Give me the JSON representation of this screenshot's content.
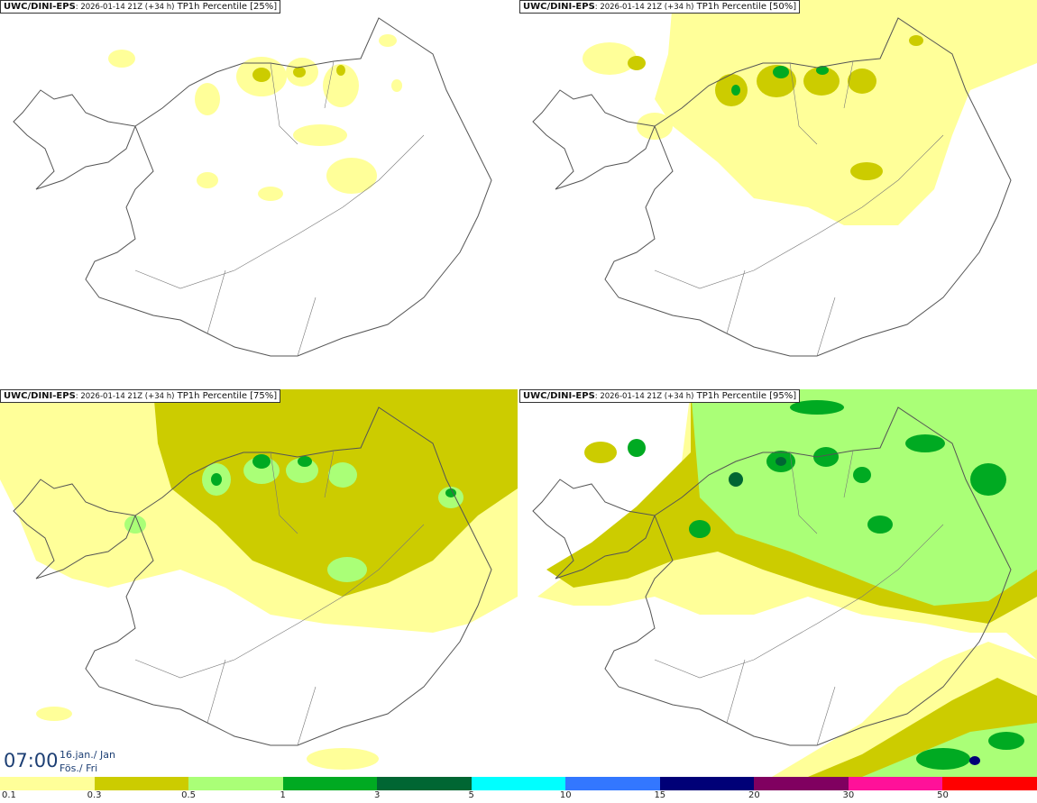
{
  "panels": [
    {
      "source": "UWC/DINI-EPS",
      "run": ": 2026-01-14 21Z (+34 h)",
      "field": "TP1h Percentile [25%]"
    },
    {
      "source": "UWC/DINI-EPS",
      "run": ": 2026-01-14 21Z (+34 h)",
      "field": "TP1h Percentile [50%]"
    },
    {
      "source": "UWC/DINI-EPS",
      "run": ": 2026-01-14 21Z (+34 h)",
      "field": "TP1h Percentile [75%]"
    },
    {
      "source": "UWC/DINI-EPS",
      "run": ": 2026-01-14 21Z (+34 h)",
      "field": "TP1h Percentile [95%]"
    }
  ],
  "valid_time": {
    "time": "07:00",
    "date": "16.jan./ Jan",
    "day": "Fös./ Fri"
  },
  "legend": {
    "labels": [
      "0.1",
      "0.3",
      "0.5",
      "1",
      "3",
      "5",
      "10",
      "15",
      "20",
      "30",
      "50"
    ],
    "colors": [
      "#ffff99",
      "#cccc00",
      "#aaff77",
      "#00aa22",
      "#006633",
      "#00ffff",
      "#3377ff",
      "#000077",
      "#800060",
      "#ff1199",
      "#ff0000"
    ]
  }
}
